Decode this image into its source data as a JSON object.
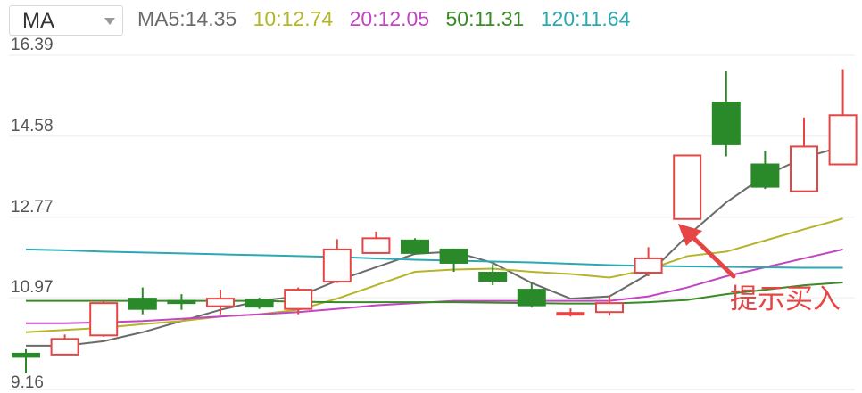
{
  "header": {
    "select_label": "MA",
    "ma_items": [
      {
        "label": "MA5:",
        "value": "14.35",
        "color": "#6b6b6b"
      },
      {
        "label": "10:",
        "value": "12.74",
        "color": "#b5b52a"
      },
      {
        "label": "20:",
        "value": "12.05",
        "color": "#c245c2"
      },
      {
        "label": "50:",
        "value": "11.31",
        "color": "#3a8a26"
      },
      {
        "label": "120:",
        "value": "11.64",
        "color": "#2aa9b0"
      }
    ]
  },
  "annotation": {
    "text": "提示买入",
    "color": "#e64545"
  },
  "chart_data": {
    "type": "candlestick",
    "y_ticks": [
      "16.39",
      "14.58",
      "12.77",
      "10.97",
      "9.16"
    ],
    "ylim": [
      9.16,
      16.39
    ],
    "grid": true,
    "colors": {
      "up": "#e64545",
      "down": "#2a8a2a"
    },
    "candles": [
      {
        "o": 9.72,
        "c": 9.65,
        "h": 9.82,
        "l": 9.3
      },
      {
        "o": 9.7,
        "c": 10.05,
        "h": 10.15,
        "l": 9.7
      },
      {
        "o": 10.13,
        "c": 10.85,
        "h": 10.9,
        "l": 10.1
      },
      {
        "o": 10.95,
        "c": 10.72,
        "h": 11.2,
        "l": 10.6
      },
      {
        "o": 10.9,
        "c": 10.85,
        "h": 11.05,
        "l": 10.7
      },
      {
        "o": 10.78,
        "c": 10.95,
        "h": 11.15,
        "l": 10.6
      },
      {
        "o": 10.92,
        "c": 10.77,
        "h": 10.97,
        "l": 10.72
      },
      {
        "o": 10.72,
        "c": 11.15,
        "h": 11.2,
        "l": 10.6
      },
      {
        "o": 11.33,
        "c": 12.05,
        "h": 12.28,
        "l": 11.3
      },
      {
        "o": 11.97,
        "c": 12.3,
        "h": 12.45,
        "l": 11.95
      },
      {
        "o": 12.25,
        "c": 11.97,
        "h": 12.3,
        "l": 11.93
      },
      {
        "o": 12.05,
        "c": 11.75,
        "h": 12.07,
        "l": 11.55
      },
      {
        "o": 11.53,
        "c": 11.35,
        "h": 11.72,
        "l": 11.25
      },
      {
        "o": 11.15,
        "c": 10.8,
        "h": 11.3,
        "l": 10.75
      },
      {
        "o": 10.63,
        "c": 10.63,
        "h": 10.73,
        "l": 10.55
      },
      {
        "o": 10.65,
        "c": 10.85,
        "h": 11.0,
        "l": 10.57
      },
      {
        "o": 11.53,
        "c": 11.85,
        "h": 12.1,
        "l": 11.45
      },
      {
        "o": 12.73,
        "c": 14.15,
        "h": 14.15,
        "l": 12.73
      },
      {
        "o": 15.33,
        "c": 14.4,
        "h": 16.03,
        "l": 14.13
      },
      {
        "o": 13.95,
        "c": 13.45,
        "h": 14.25,
        "l": 13.4
      },
      {
        "o": 13.35,
        "c": 14.35,
        "h": 15.0,
        "l": 13.35
      },
      {
        "o": 13.95,
        "c": 15.05,
        "h": 16.08,
        "l": 13.95
      }
    ],
    "series": [
      {
        "color": "#6b6b6b",
        "values": [
          9.9,
          9.9,
          10.0,
          10.2,
          10.45,
          10.7,
          10.9,
          11.0,
          11.35,
          11.65,
          11.95,
          12.0,
          11.75,
          11.3,
          10.95,
          11.0,
          11.5,
          12.35,
          13.1,
          13.7,
          14.1,
          14.35
        ]
      },
      {
        "color": "#b5b52a",
        "values": [
          10.2,
          10.25,
          10.3,
          10.38,
          10.45,
          10.55,
          10.6,
          10.7,
          10.95,
          11.25,
          11.55,
          11.6,
          11.62,
          11.55,
          11.5,
          11.42,
          11.6,
          11.9,
          12.0,
          12.25,
          12.5,
          12.74
        ]
      },
      {
        "color": "#c245c2",
        "values": [
          10.4,
          10.4,
          10.42,
          10.45,
          10.5,
          10.55,
          10.6,
          10.65,
          10.72,
          10.8,
          10.85,
          10.9,
          10.9,
          10.9,
          10.9,
          10.9,
          11.0,
          11.2,
          11.45,
          11.65,
          11.85,
          12.05
        ]
      },
      {
        "color": "#3a8a26",
        "values": [
          10.9,
          10.9,
          10.9,
          10.9,
          10.9,
          10.9,
          10.9,
          10.88,
          10.87,
          10.87,
          10.87,
          10.87,
          10.86,
          10.85,
          10.84,
          10.84,
          10.87,
          10.92,
          11.05,
          11.15,
          11.25,
          11.31
        ]
      },
      {
        "color": "#2aa9b0",
        "values": [
          12.05,
          12.03,
          12.0,
          11.98,
          11.96,
          11.94,
          11.92,
          11.9,
          11.88,
          11.85,
          11.82,
          11.8,
          11.78,
          11.76,
          11.73,
          11.7,
          11.68,
          11.67,
          11.66,
          11.65,
          11.64,
          11.64
        ]
      }
    ]
  }
}
